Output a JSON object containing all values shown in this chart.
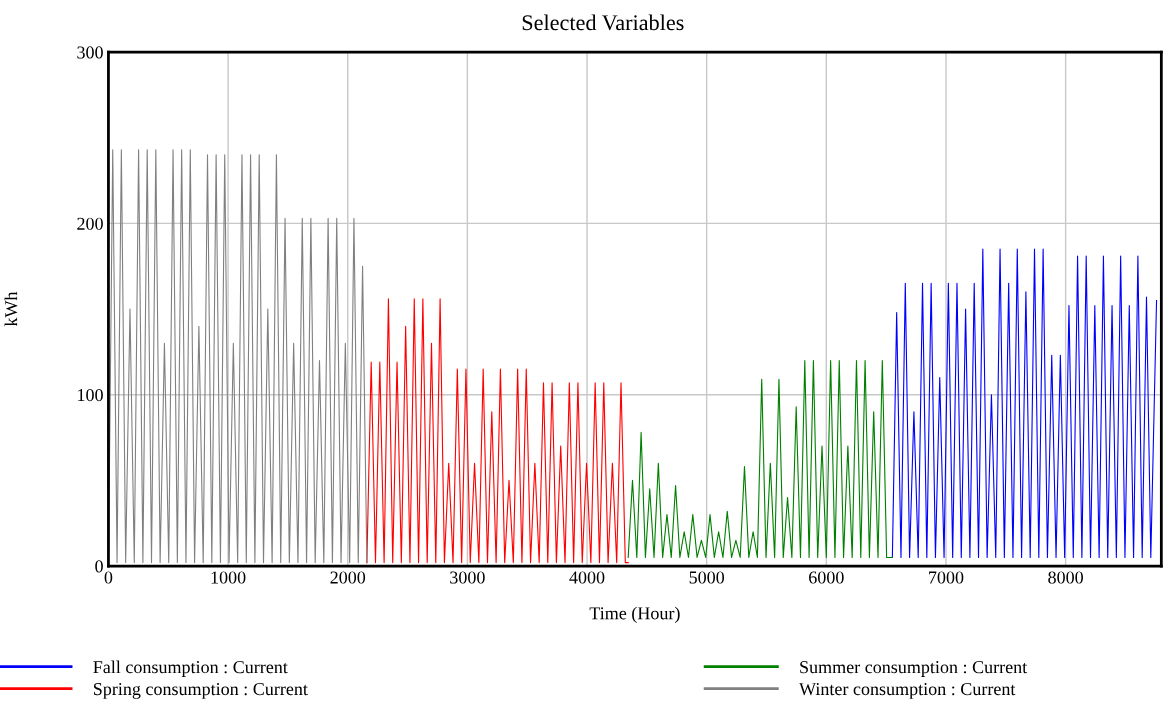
{
  "chart_data": {
    "type": "line",
    "title": "Selected Variables",
    "xlabel": "Time (Hour)",
    "ylabel": "kWh",
    "xlim": [
      0,
      8800
    ],
    "xticks": [
      0,
      1000,
      2000,
      3000,
      4000,
      5000,
      6000,
      7000,
      8000
    ],
    "ylim": [
      0,
      300
    ],
    "yticks": [
      0,
      100,
      200,
      300
    ],
    "grid": true,
    "legend": "bottom",
    "marker": "none",
    "line_style": "solid",
    "series": [
      {
        "name": "Fall consumption : Current",
        "color": "#0000ff",
        "x": [
          6552,
          6588,
          6624,
          6660,
          6696,
          6732,
          6768,
          6804,
          6840,
          6876,
          6912,
          6948,
          6984,
          7020,
          7056,
          7092,
          7128,
          7164,
          7200,
          7236,
          7272,
          7308,
          7344,
          7380,
          7416,
          7452,
          7488,
          7524,
          7560,
          7596,
          7632,
          7668,
          7704,
          7740,
          7776,
          7812,
          7848,
          7884,
          7920,
          7956,
          7992,
          8028,
          8064,
          8100,
          8136,
          8172,
          8208,
          8244,
          8280,
          8316,
          8352,
          8388,
          8424,
          8460,
          8496,
          8532,
          8568,
          8604,
          8640,
          8676,
          8712,
          8760
        ],
        "values": [
          5,
          148,
          5,
          165,
          5,
          90,
          5,
          165,
          5,
          165,
          5,
          110,
          5,
          165,
          5,
          165,
          5,
          150,
          5,
          165,
          5,
          185,
          5,
          100,
          5,
          185,
          5,
          165,
          5,
          185,
          5,
          160,
          5,
          185,
          5,
          185,
          5,
          123,
          5,
          123,
          5,
          152,
          5,
          181,
          5,
          181,
          5,
          152,
          5,
          181,
          5,
          152,
          5,
          181,
          5,
          152,
          5,
          181,
          5,
          157,
          5,
          155
        ]
      },
      {
        "name": "Spring consumption : Current",
        "color": "#ff0000",
        "x": [
          2160,
          2196,
          2232,
          2268,
          2304,
          2340,
          2376,
          2412,
          2448,
          2484,
          2520,
          2556,
          2592,
          2628,
          2664,
          2700,
          2736,
          2772,
          2808,
          2844,
          2880,
          2916,
          2952,
          2988,
          3024,
          3060,
          3096,
          3132,
          3168,
          3204,
          3240,
          3276,
          3312,
          3348,
          3384,
          3420,
          3456,
          3492,
          3528,
          3564,
          3600,
          3636,
          3672,
          3708,
          3744,
          3780,
          3816,
          3852,
          3888,
          3924,
          3960,
          3996,
          4032,
          4068,
          4104,
          4140,
          4176,
          4212,
          4248,
          4284,
          4320,
          4344
        ],
        "values": [
          2,
          119,
          2,
          119,
          2,
          156,
          2,
          119,
          2,
          140,
          2,
          156,
          2,
          156,
          2,
          130,
          2,
          156,
          2,
          60,
          2,
          115,
          2,
          115,
          2,
          60,
          2,
          115,
          2,
          90,
          2,
          115,
          2,
          50,
          2,
          115,
          2,
          115,
          2,
          60,
          2,
          107,
          2,
          107,
          2,
          70,
          2,
          107,
          2,
          107,
          2,
          60,
          2,
          107,
          2,
          107,
          2,
          60,
          2,
          107,
          2,
          2
        ]
      },
      {
        "name": "Summer consumption : Current",
        "color": "#008000",
        "x": [
          4344,
          4380,
          4416,
          4452,
          4488,
          4524,
          4560,
          4596,
          4632,
          4668,
          4704,
          4740,
          4776,
          4812,
          4848,
          4884,
          4920,
          4956,
          4992,
          5028,
          5064,
          5100,
          5136,
          5172,
          5208,
          5244,
          5280,
          5316,
          5352,
          5388,
          5424,
          5460,
          5496,
          5532,
          5568,
          5604,
          5640,
          5676,
          5712,
          5748,
          5784,
          5820,
          5856,
          5892,
          5928,
          5964,
          6000,
          6036,
          6072,
          6108,
          6144,
          6180,
          6216,
          6252,
          6288,
          6324,
          6360,
          6396,
          6432,
          6468,
          6504,
          6552
        ],
        "values": [
          5,
          50,
          5,
          78,
          5,
          45,
          5,
          60,
          5,
          30,
          5,
          47,
          5,
          20,
          5,
          30,
          5,
          15,
          5,
          30,
          5,
          20,
          5,
          32,
          5,
          15,
          5,
          58,
          5,
          20,
          5,
          109,
          5,
          60,
          5,
          109,
          5,
          40,
          5,
          93,
          5,
          120,
          5,
          120,
          5,
          70,
          5,
          120,
          5,
          120,
          5,
          70,
          5,
          120,
          5,
          120,
          5,
          90,
          5,
          120,
          5,
          5
        ]
      },
      {
        "name": "Winter consumption : Current",
        "color": "#808080",
        "x": [
          0,
          36,
          72,
          108,
          144,
          180,
          216,
          252,
          288,
          324,
          360,
          396,
          432,
          468,
          504,
          540,
          576,
          612,
          648,
          684,
          720,
          756,
          792,
          828,
          864,
          900,
          936,
          972,
          1008,
          1044,
          1080,
          1116,
          1152,
          1188,
          1224,
          1260,
          1296,
          1332,
          1368,
          1404,
          1440,
          1476,
          1512,
          1548,
          1584,
          1620,
          1656,
          1692,
          1728,
          1764,
          1800,
          1836,
          1872,
          1908,
          1944,
          1980,
          2016,
          2052,
          2088,
          2124,
          2160
        ],
        "values": [
          2,
          243,
          2,
          243,
          2,
          150,
          2,
          243,
          2,
          243,
          2,
          243,
          2,
          130,
          2,
          243,
          2,
          243,
          2,
          243,
          2,
          140,
          2,
          240,
          2,
          240,
          2,
          240,
          2,
          130,
          2,
          240,
          2,
          240,
          2,
          240,
          2,
          150,
          2,
          240,
          2,
          203,
          2,
          130,
          2,
          203,
          2,
          203,
          2,
          120,
          2,
          203,
          2,
          203,
          2,
          130,
          2,
          203,
          2,
          175,
          2
        ]
      }
    ]
  }
}
